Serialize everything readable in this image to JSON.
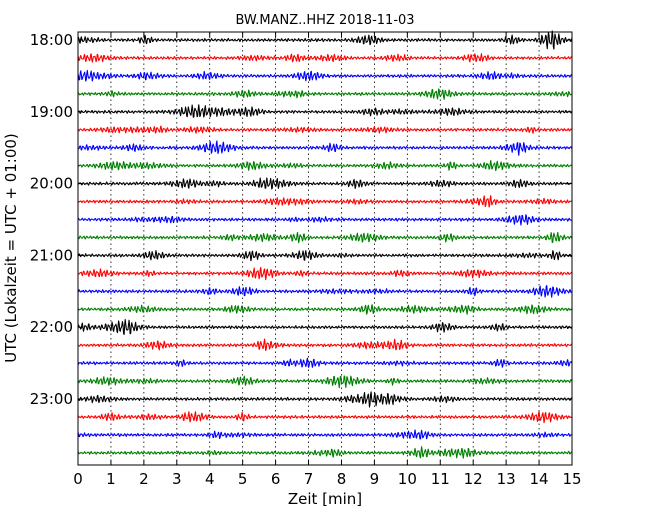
{
  "chart_data": {
    "type": "line",
    "title": "BW.MANZ..HHZ 2018-11-03",
    "xlabel": "Zeit  [min]",
    "ylabel": "UTC (Lokalzeit = UTC + 01:00)",
    "xlim": [
      0,
      15
    ],
    "x_ticks": [
      "0",
      "1",
      "2",
      "3",
      "4",
      "5",
      "6",
      "7",
      "8",
      "9",
      "10",
      "11",
      "12",
      "13",
      "14",
      "15"
    ],
    "y_tick_labels": [
      "18:00",
      "19:00",
      "20:00",
      "21:00",
      "22:00",
      "23:00"
    ],
    "start_time": "18:00",
    "trace_interval_minutes": 15,
    "grid": "vertical dotted at each minute",
    "trace_colors": [
      "#000000",
      "#ff0000",
      "#0000ff",
      "#008000"
    ],
    "trace_start_times": [
      "18:00",
      "18:15",
      "18:30",
      "18:45",
      "19:00",
      "19:15",
      "19:30",
      "19:45",
      "20:00",
      "20:15",
      "20:30",
      "20:45",
      "21:00",
      "21:15",
      "21:30",
      "21:45",
      "22:00",
      "22:15",
      "22:30",
      "22:45",
      "23:00",
      "23:15",
      "23:30",
      "23:45"
    ]
  }
}
